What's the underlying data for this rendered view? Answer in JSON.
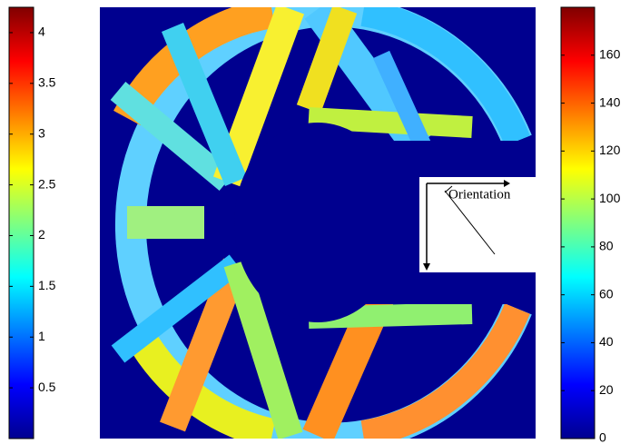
{
  "left_colorbar": {
    "lim": [
      0,
      4.25
    ],
    "ticks": [
      0.5,
      1,
      1.5,
      2,
      2.5,
      3,
      3.5,
      4
    ]
  },
  "right_colorbar": {
    "lim": [
      0,
      180
    ],
    "ticks": [
      0,
      20,
      40,
      60,
      80,
      100,
      120,
      140,
      160
    ]
  },
  "annotation": "Orientation"
}
